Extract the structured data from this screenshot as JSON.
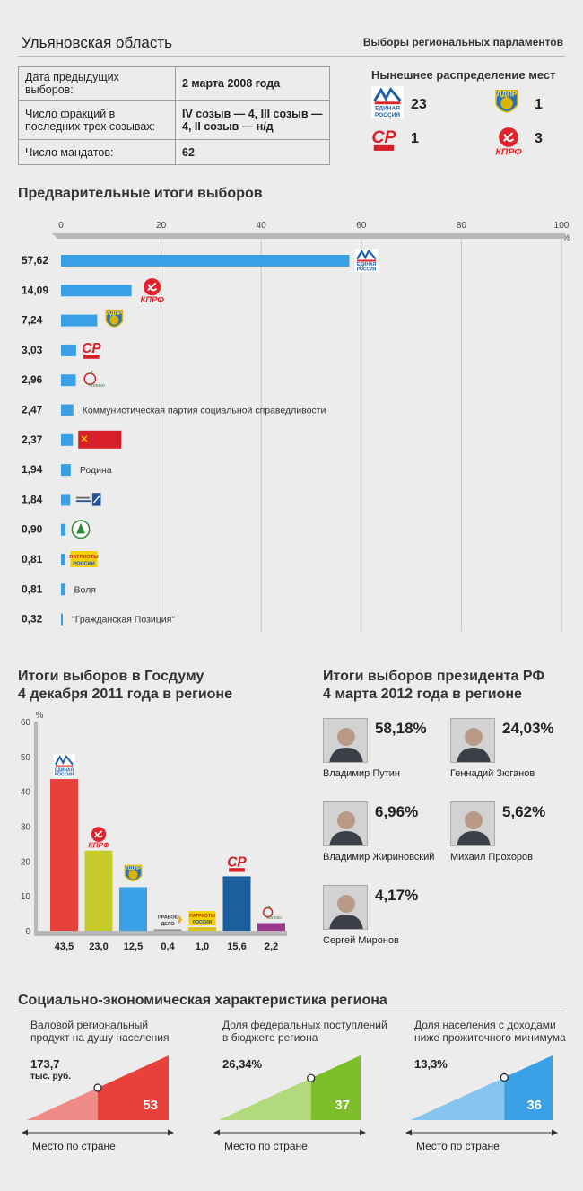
{
  "header": {
    "region": "Ульяновская область",
    "section": "Выборы региональных парламентов"
  },
  "info": [
    {
      "label": "Дата предыдущих выборов:",
      "value": "2 марта 2008 года"
    },
    {
      "label": "Число фракций в последних трех созывах:",
      "value": "IV созыв — 4, III созыв — 4, II созыв — н/д"
    },
    {
      "label": "Число мандатов:",
      "value": "62"
    }
  ],
  "seats": {
    "title": "Нынешнее распределение мест",
    "items": [
      {
        "party": "ЕДИНАЯ РОССИЯ",
        "seats": "23"
      },
      {
        "party": "ЛДПР",
        "seats": "1"
      },
      {
        "party": "СР",
        "seats": "1"
      },
      {
        "party": "КПРФ",
        "seats": "3"
      }
    ]
  },
  "logo_text": {
    "er_line1": "ЕДИНАЯ",
    "er_line2": "РОССИЯ",
    "kprf": "КПРФ",
    "ldpr": "ЛДПР",
    "sr": "СР",
    "yabloko": "яблоко",
    "patriots_line1": "ПАТРИОТЫ",
    "patriots_line2": "РОССИИ",
    "pravoe_line1": "ПРАВОЕ",
    "pravoe_line2": "ДЕЛО"
  },
  "chart_data": [
    {
      "type": "bar",
      "orientation": "horizontal",
      "title": "Предварительные итоги выборов",
      "unit": "%",
      "xlim": [
        0,
        100
      ],
      "ticks": [
        0,
        20,
        40,
        60,
        80,
        100
      ],
      "grid": true,
      "color": "#3aa0e6",
      "values": [
        57.62,
        14.09,
        7.24,
        3.03,
        2.96,
        2.47,
        2.37,
        1.94,
        1.84,
        0.9,
        0.81,
        0.81,
        0.32
      ],
      "value_labels": [
        "57,62",
        "14,09",
        "7,24",
        "3,03",
        "2,96",
        "2,47",
        "2,37",
        "1,94",
        "1,84",
        "0,90",
        "0,81",
        "0,81",
        "0,32"
      ],
      "categories": [
        "er",
        "kprf",
        "ldpr",
        "sr",
        "yabloko",
        "Коммунистическая партия социальной справедливости",
        "red-flag",
        "Родина",
        "pensioners",
        "green",
        "patriots",
        "Воля",
        "\"Гражданская Позиция\""
      ],
      "category_labels": [
        "",
        "",
        "",
        "",
        "",
        "Коммунистическая партия социальной справедливости",
        "",
        "Родина",
        "",
        "",
        "",
        "Воля",
        "\"Гражданская Позиция\""
      ]
    },
    {
      "type": "bar",
      "orientation": "vertical",
      "title": "Итоги выборов в Госдуму 4 декабря 2011 года в регионе",
      "unit": "%",
      "ylim": [
        0,
        60
      ],
      "ticks": [
        0,
        10,
        20,
        30,
        40,
        50,
        60
      ],
      "grid": false,
      "values": [
        43.5,
        23.0,
        12.5,
        0.4,
        1.0,
        15.6,
        2.2
      ],
      "value_labels": [
        "43,5",
        "23,0",
        "12,5",
        "0,4",
        "1,0",
        "15,6",
        "2,2"
      ],
      "categories": [
        "er",
        "kprf",
        "ldpr",
        "pravoe",
        "patriots",
        "sr",
        "yabloko"
      ],
      "colors": [
        "#e8413c",
        "#c8cc2a",
        "#3aa0e6",
        "#909090",
        "#d9c21a",
        "#1c5f9e",
        "#9b3a8c"
      ]
    }
  ],
  "dumatitle": {
    "line1": "Итоги выборов в Госдуму",
    "line2": "4 декабря 2011 года в регионе"
  },
  "president": {
    "title_line1": "Итоги выборов президента РФ",
    "title_line2": "4 марта 2012 года в регионе",
    "candidates": [
      {
        "name": "Владимир Путин",
        "pct": "58,18%"
      },
      {
        "name": "Геннадий Зюганов",
        "pct": "24,03%"
      },
      {
        "name": "Владимир Жириновский",
        "pct": "6,96%"
      },
      {
        "name": "Михаил Прохоров",
        "pct": "5,62%"
      },
      {
        "name": "Сергей Миронов",
        "pct": "4,17%"
      }
    ]
  },
  "socio": {
    "title": "Социально-экономическая характеристика региона",
    "place_label": "Место по стране",
    "blocks": [
      {
        "label_line1": "Валовой региональный",
        "label_line2": "продукт на душу населения",
        "value": "173,7",
        "sub": "тыс. руб.",
        "rank": "53",
        "rank_fraction": 0.5,
        "color": "#e8413c",
        "light": "#f08a86"
      },
      {
        "label_line1": "Доля федеральных поступлений",
        "label_line2": "в бюджете региона",
        "value": "26,34%",
        "sub": "",
        "rank": "37",
        "rank_fraction": 0.65,
        "color": "#7cbf2a",
        "light": "#b2d97c"
      },
      {
        "label_line1": "Доля населения с доходами",
        "label_line2": "ниже прожиточного минимума",
        "value": "13,3%",
        "sub": "",
        "rank": "36",
        "rank_fraction": 0.66,
        "color": "#3aa0e6",
        "light": "#87c4ee"
      }
    ]
  }
}
